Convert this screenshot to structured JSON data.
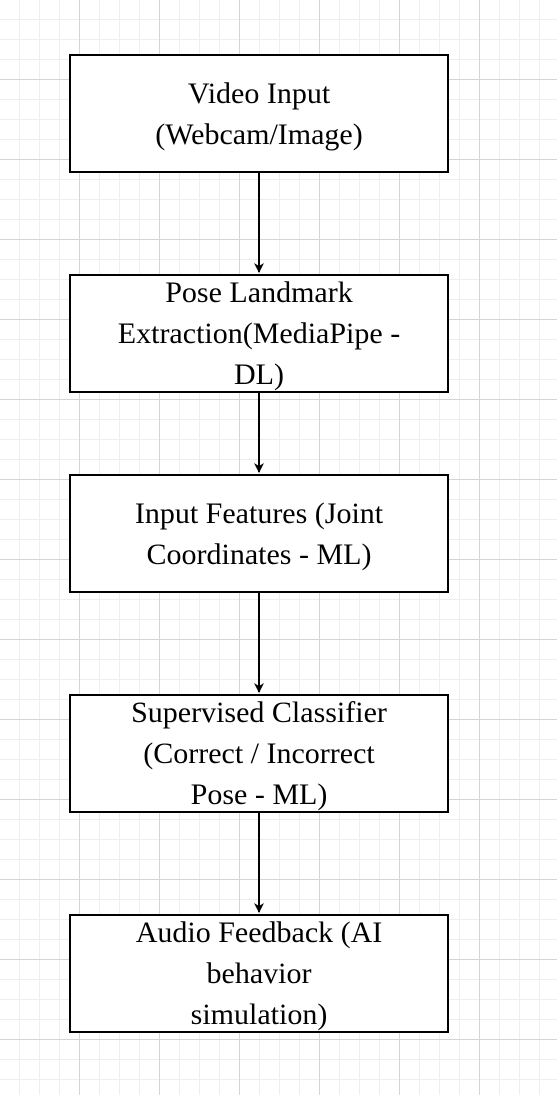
{
  "diagram": {
    "nodes": [
      {
        "id": "video-input",
        "label": "Video Input\n(Webcam/Image)"
      },
      {
        "id": "pose-landmark-extraction",
        "label": "Pose Landmark\nExtraction(MediaPipe -\nDL)"
      },
      {
        "id": "input-features",
        "label": "Input Features (Joint\nCoordinates - ML)"
      },
      {
        "id": "supervised-classifier",
        "label": "Supervised Classifier\n(Correct / Incorrect\nPose - ML)"
      },
      {
        "id": "audio-feedback",
        "label": "Audio Feedback (AI\nbehavior\nsimulation)"
      }
    ],
    "edges": [
      {
        "from": "video-input",
        "to": "pose-landmark-extraction"
      },
      {
        "from": "pose-landmark-extraction",
        "to": "input-features"
      },
      {
        "from": "input-features",
        "to": "supervised-classifier"
      },
      {
        "from": "supervised-classifier",
        "to": "audio-feedback"
      }
    ],
    "colors": {
      "stroke": "#000000",
      "node_fill": "#ffffff",
      "grid_major": "#d4d4d4",
      "grid_minor": "#eeeeee"
    }
  }
}
